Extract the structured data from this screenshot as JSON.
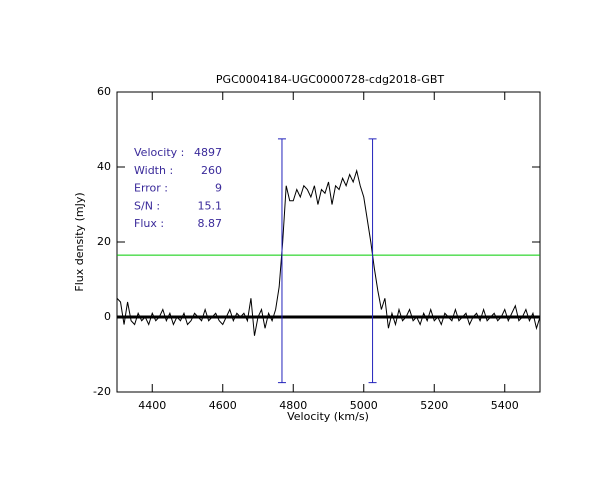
{
  "chart_data": {
    "type": "line",
    "title": "PGC0004184-UGC0000728-cdg2018-GBT",
    "xlabel": "Velocity (km/s)",
    "ylabel": "Flux density (mJy)",
    "xlim": [
      4300,
      5500
    ],
    "ylim": [
      -20,
      60
    ],
    "xticks": [
      4400,
      4600,
      4800,
      5000,
      5200,
      5400
    ],
    "yticks": [
      -20,
      0,
      20,
      40,
      60
    ],
    "series": [
      {
        "color": "#000000",
        "x": [
          4300,
          4310,
          4320,
          4330,
          4340,
          4350,
          4360,
          4370,
          4380,
          4390,
          4400,
          4410,
          4420,
          4430,
          4440,
          4450,
          4460,
          4470,
          4480,
          4490,
          4500,
          4510,
          4520,
          4530,
          4540,
          4550,
          4560,
          4570,
          4580,
          4590,
          4600,
          4610,
          4620,
          4630,
          4640,
          4650,
          4660,
          4670,
          4680,
          4690,
          4700,
          4710,
          4720,
          4730,
          4740,
          4750,
          4760,
          4770,
          4780,
          4790,
          4800,
          4810,
          4820,
          4830,
          4840,
          4850,
          4860,
          4870,
          4880,
          4890,
          4900,
          4910,
          4920,
          4930,
          4940,
          4950,
          4960,
          4970,
          4980,
          4990,
          5000,
          5010,
          5020,
          5030,
          5040,
          5050,
          5060,
          5070,
          5080,
          5090,
          5100,
          5110,
          5120,
          5130,
          5140,
          5150,
          5160,
          5170,
          5180,
          5190,
          5200,
          5210,
          5220,
          5230,
          5240,
          5250,
          5260,
          5270,
          5280,
          5290,
          5300,
          5310,
          5320,
          5330,
          5340,
          5350,
          5360,
          5370,
          5380,
          5390,
          5400,
          5410,
          5420,
          5430,
          5440,
          5450,
          5460,
          5470,
          5480,
          5490,
          5500
        ],
        "values": [
          5,
          4,
          -2,
          4,
          -1,
          -2,
          1,
          -1,
          0,
          -2,
          1,
          -1,
          0,
          2,
          -1,
          1,
          -2,
          0,
          -1,
          1,
          -2,
          -1,
          1,
          0,
          -1,
          2,
          -1,
          0,
          1,
          -1,
          -2,
          0,
          2,
          -1,
          1,
          0,
          1,
          -1,
          5,
          -5,
          0,
          2,
          -3,
          1,
          -1,
          2,
          8,
          20,
          35,
          31,
          31,
          34,
          32,
          35,
          34,
          32,
          35,
          30,
          34,
          33,
          36,
          30,
          35,
          34,
          37,
          35,
          38,
          36,
          39,
          35,
          32,
          26,
          20,
          13,
          7,
          2,
          5,
          -3,
          1,
          -2,
          2,
          -1,
          0,
          2,
          -1,
          0,
          -2,
          1,
          -1,
          2,
          -1,
          0,
          -2,
          1,
          0,
          -1,
          2,
          -1,
          0,
          1,
          -2,
          0,
          1,
          -1,
          2,
          -1,
          0,
          1,
          -1,
          0,
          2,
          -1,
          1,
          3,
          -1,
          0,
          2,
          -1,
          1,
          -3,
          0
        ]
      }
    ],
    "baseline": 0,
    "reference_line": {
      "value": 16.5,
      "color": "#00cc00"
    },
    "markers": {
      "x": [
        4768,
        5025
      ],
      "range": [
        -17.5,
        47.5
      ],
      "color": "#2222bb"
    },
    "annotations": [
      {
        "label": "Velocity :",
        "value": 4897
      },
      {
        "label": "Width :",
        "value": 260
      },
      {
        "label": "Error :",
        "value": 9
      },
      {
        "label": "S/N :",
        "value": 15.1
      },
      {
        "label": "Flux :",
        "value": 8.87
      }
    ],
    "annotation_color": "#3a2a9a"
  }
}
